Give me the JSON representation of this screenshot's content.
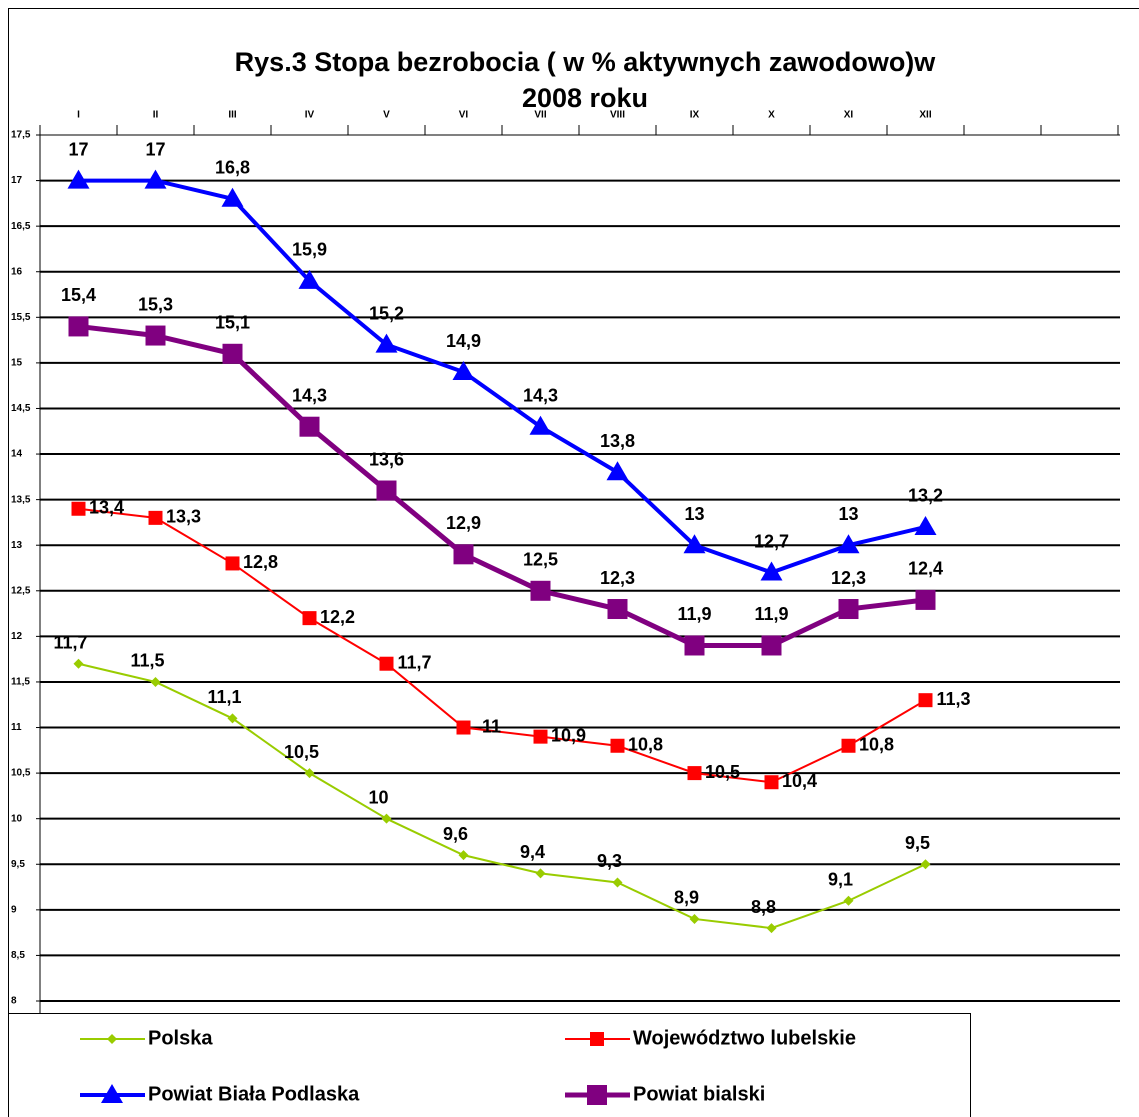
{
  "chart_data": {
    "type": "line",
    "title": [
      "Rys.3 Stopa bezrobocia ( w % aktywnych zawodowo)w",
      "2008 roku"
    ],
    "categories": [
      "I",
      "II",
      "III",
      "IV",
      "V",
      "VI",
      "VII",
      "VIII",
      "IX",
      "X",
      "XI",
      "XII"
    ],
    "ylim": [
      8,
      17.5
    ],
    "yticks": [
      8,
      {
        "value": 8.5,
        "label": "8,5"
      },
      9,
      {
        "value": 9.5,
        "label": "9,5"
      },
      10,
      {
        "value": 10.5,
        "label": "10,5"
      },
      11,
      {
        "value": 11.5,
        "label": "11,5"
      },
      12,
      {
        "value": 12.5,
        "label": "12,5"
      },
      13,
      {
        "value": 13.5,
        "label": "13,5"
      },
      14,
      {
        "value": 14.5,
        "label": "14,5"
      },
      15,
      {
        "value": 15.5,
        "label": "15,5"
      },
      16,
      {
        "value": 16.5,
        "label": "16,5"
      },
      17,
      {
        "value": 17.5,
        "label": "17,5"
      }
    ],
    "grid": true,
    "series": [
      {
        "name": "Polska",
        "color": "#99cc00",
        "marker": "diamond",
        "values": [
          11.7,
          11.5,
          11.1,
          10.5,
          10,
          9.6,
          9.4,
          9.3,
          8.9,
          8.8,
          9.1,
          9.5
        ],
        "value_labels": [
          "11,7",
          "11,5",
          "11,1",
          "10,5",
          "10",
          "9,6",
          "9,4",
          "9,3",
          "8,9",
          "8,8",
          "9,1",
          "9,5"
        ]
      },
      {
        "name": "Województwo lubelskie",
        "color": "#ff0000",
        "marker": "square",
        "values": [
          13.4,
          13.3,
          12.8,
          12.2,
          11.7,
          11,
          10.9,
          10.8,
          10.5,
          10.4,
          10.8,
          11.3
        ],
        "value_labels": [
          "13,4",
          "13,3",
          "12,8",
          "12,2",
          "11,7",
          "11",
          "10,9",
          "10,8",
          "10,5",
          "10,4",
          "10,8",
          "11,3"
        ]
      },
      {
        "name": "Powiat Biała Podlaska",
        "color": "#0000ff",
        "marker": "triangle",
        "values": [
          17,
          17,
          16.8,
          15.9,
          15.2,
          14.9,
          14.3,
          13.8,
          13,
          12.7,
          13,
          13.2
        ],
        "value_labels": [
          "17",
          "17",
          "16,8",
          "15,9",
          "15,2",
          "14,9",
          "14,3",
          "13,8",
          "13",
          "12,7",
          "13",
          "13,2"
        ]
      },
      {
        "name": "Powiat bialski",
        "color": "#800080",
        "marker": "bigsquare",
        "values": [
          15.4,
          15.3,
          15.1,
          14.3,
          13.6,
          12.9,
          12.5,
          12.3,
          11.9,
          11.9,
          12.3,
          12.4
        ],
        "value_labels": [
          "15,4",
          "15,3",
          "15,1",
          "14,3",
          "13,6",
          "12,9",
          "12,5",
          "12,3",
          "11,9",
          "11,9",
          "12,3",
          "12,4"
        ]
      }
    ]
  }
}
